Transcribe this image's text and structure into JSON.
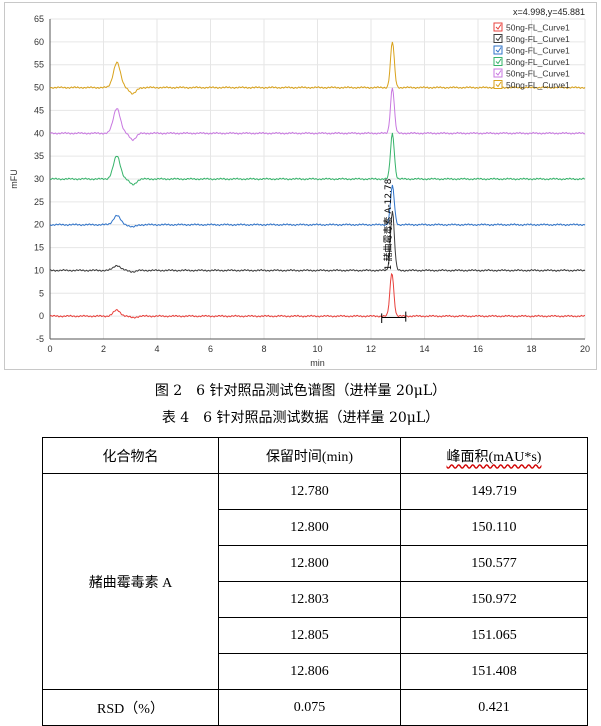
{
  "figure": {
    "caption": "图 2　6 针对照品测试色谱图（进样量 20μL）",
    "cursor_readout": "x=4.998,y=45.881",
    "peak_label": "1-赭曲霉毒素 A-12.78"
  },
  "chart_data": {
    "type": "line",
    "xlabel": "min",
    "ylabel": "mFU",
    "xlim": [
      0,
      20
    ],
    "ylim": [
      -5,
      65
    ],
    "x_ticks": [
      0,
      2,
      4,
      6,
      8,
      10,
      12,
      14,
      16,
      18,
      20
    ],
    "y_ticks": [
      -5,
      0,
      5,
      10,
      15,
      20,
      25,
      30,
      35,
      40,
      45,
      50,
      55,
      60,
      65
    ],
    "grid": true,
    "legend_position": "top-right",
    "series": [
      {
        "name": "50ng-FL_Curve1",
        "color": "#e8413c",
        "baseline": 0,
        "peak1_height": 1.3,
        "peak2_height": 9.5,
        "peak2_rt": 12.78
      },
      {
        "name": "50ng-FL_Curve1",
        "color": "#3c3c3c",
        "baseline": 10,
        "peak1_height": 1.1,
        "peak2_height": 13.0,
        "peak2_rt": 12.8
      },
      {
        "name": "50ng-FL_Curve1",
        "color": "#2f73c9",
        "baseline": 20,
        "peak1_height": 2.0,
        "peak2_height": 8.5,
        "peak2_rt": 12.8
      },
      {
        "name": "50ng-FL_Curve1",
        "color": "#36b36a",
        "baseline": 30,
        "peak1_height": 5.0,
        "peak2_height": 10.0,
        "peak2_rt": 12.8
      },
      {
        "name": "50ng-FL_Curve1",
        "color": "#c878e0",
        "baseline": 40,
        "peak1_height": 5.5,
        "peak2_height": 10.0,
        "peak2_rt": 12.8
      },
      {
        "name": "50ng-FL_Curve1",
        "color": "#d9a21b",
        "baseline": 50,
        "peak1_height": 5.5,
        "peak2_height": 10.0,
        "peak2_rt": 12.8
      }
    ]
  },
  "table": {
    "caption": "表 4　6 针对照品测试数据（进样量 20μL）",
    "headers": [
      "化合物名",
      "保留时间(min)",
      "峰面积(mAU*s)"
    ],
    "compound": "赭曲霉毒素 A",
    "rows": [
      {
        "rt": "12.780",
        "area": "149.719"
      },
      {
        "rt": "12.800",
        "area": "150.110"
      },
      {
        "rt": "12.800",
        "area": "150.577"
      },
      {
        "rt": "12.803",
        "area": "150.972"
      },
      {
        "rt": "12.805",
        "area": "151.065"
      },
      {
        "rt": "12.806",
        "area": "151.408"
      }
    ],
    "rsd": {
      "label": "RSD（%）",
      "rt": "0.075",
      "area": "0.421"
    }
  }
}
